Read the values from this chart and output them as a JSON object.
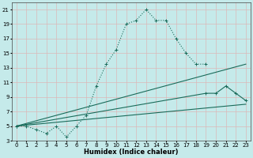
{
  "xlabel": "Humidex (Indice chaleur)",
  "xlim": [
    -0.5,
    23.5
  ],
  "ylim": [
    3,
    22
  ],
  "yticks": [
    3,
    5,
    7,
    9,
    11,
    13,
    15,
    17,
    19,
    21
  ],
  "xticks": [
    0,
    1,
    2,
    3,
    4,
    5,
    6,
    7,
    8,
    9,
    10,
    11,
    12,
    13,
    14,
    15,
    16,
    17,
    18,
    19,
    20,
    21,
    22,
    23
  ],
  "bg_color": "#c5eaea",
  "grid_color": "#dbb8b8",
  "line_color": "#1a6b5a",
  "lines": [
    {
      "x": [
        0,
        1,
        2,
        3,
        4,
        5,
        6,
        7,
        8,
        9,
        10,
        11,
        12,
        13,
        14,
        15,
        16,
        17,
        18,
        19
      ],
      "y": [
        5,
        5,
        4.5,
        4.0,
        5.0,
        3.5,
        5.0,
        6.5,
        10.5,
        13.5,
        15.5,
        19.0,
        19.5,
        21.0,
        19.5,
        19.5,
        17.0,
        15.0,
        13.5,
        13.5
      ],
      "style": ":",
      "marker": "+"
    },
    {
      "x": [
        0,
        19,
        20,
        21,
        22,
        23
      ],
      "y": [
        5,
        9.5,
        9.5,
        10.5,
        9.5,
        8.5
      ],
      "style": "-",
      "marker": "+"
    },
    {
      "x": [
        0,
        23
      ],
      "y": [
        5,
        13.5
      ],
      "style": "-",
      "marker": null
    },
    {
      "x": [
        0,
        23
      ],
      "y": [
        5,
        8.0
      ],
      "style": "-",
      "marker": null
    }
  ]
}
